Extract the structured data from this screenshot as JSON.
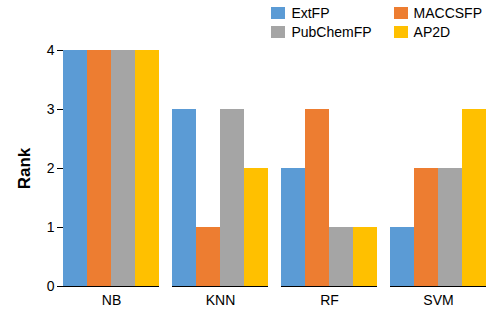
{
  "chart_data": {
    "type": "bar",
    "categories": [
      "NB",
      "KNN",
      "RF",
      "SVM"
    ],
    "series": [
      {
        "name": "ExtFP",
        "color": "#5b9bd5",
        "values": [
          4,
          3,
          2,
          1
        ]
      },
      {
        "name": "MACCSFP",
        "color": "#ed7d31",
        "values": [
          4,
          1,
          3,
          2
        ]
      },
      {
        "name": "PubChemFP",
        "color": "#a5a5a5",
        "values": [
          4,
          3,
          1,
          2
        ]
      },
      {
        "name": "AP2D",
        "color": "#ffc000",
        "values": [
          4,
          2,
          1,
          3
        ]
      }
    ],
    "y_label": "Rank",
    "ylim": [
      0,
      4
    ],
    "yticks": [
      0,
      1,
      2,
      3,
      4
    ],
    "grid": false,
    "legend": "top right"
  }
}
